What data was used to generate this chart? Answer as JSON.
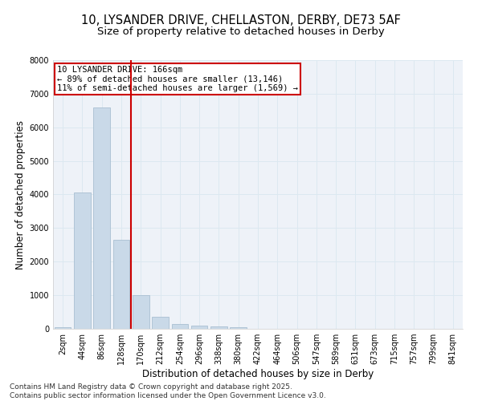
{
  "title_line1": "10, LYSANDER DRIVE, CHELLASTON, DERBY, DE73 5AF",
  "title_line2": "Size of property relative to detached houses in Derby",
  "xlabel": "Distribution of detached houses by size in Derby",
  "ylabel": "Number of detached properties",
  "categories": [
    "2sqm",
    "44sqm",
    "86sqm",
    "128sqm",
    "170sqm",
    "212sqm",
    "254sqm",
    "296sqm",
    "338sqm",
    "380sqm",
    "422sqm",
    "464sqm",
    "506sqm",
    "547sqm",
    "589sqm",
    "631sqm",
    "673sqm",
    "715sqm",
    "757sqm",
    "799sqm",
    "841sqm"
  ],
  "values": [
    50,
    4050,
    6600,
    2650,
    1000,
    350,
    150,
    100,
    75,
    55,
    0,
    0,
    0,
    0,
    0,
    0,
    0,
    0,
    0,
    0,
    0
  ],
  "bar_color": "#c9d9e8",
  "bar_edge_color": "#a0b8cc",
  "vline_x": 3.5,
  "vline_color": "#cc0000",
  "annotation_line1": "10 LYSANDER DRIVE: 166sqm",
  "annotation_line2": "← 89% of detached houses are smaller (13,146)",
  "annotation_line3": "11% of semi-detached houses are larger (1,569) →",
  "annotation_box_color": "#cc0000",
  "ylim": [
    0,
    8000
  ],
  "yticks": [
    0,
    1000,
    2000,
    3000,
    4000,
    5000,
    6000,
    7000,
    8000
  ],
  "grid_color": "#dce8f0",
  "bg_color": "#eef2f8",
  "footer_line1": "Contains HM Land Registry data © Crown copyright and database right 2025.",
  "footer_line2": "Contains public sector information licensed under the Open Government Licence v3.0.",
  "title_fontsize": 10.5,
  "subtitle_fontsize": 9.5,
  "axis_label_fontsize": 8.5,
  "tick_fontsize": 7,
  "annotation_fontsize": 7.5,
  "footer_fontsize": 6.5
}
